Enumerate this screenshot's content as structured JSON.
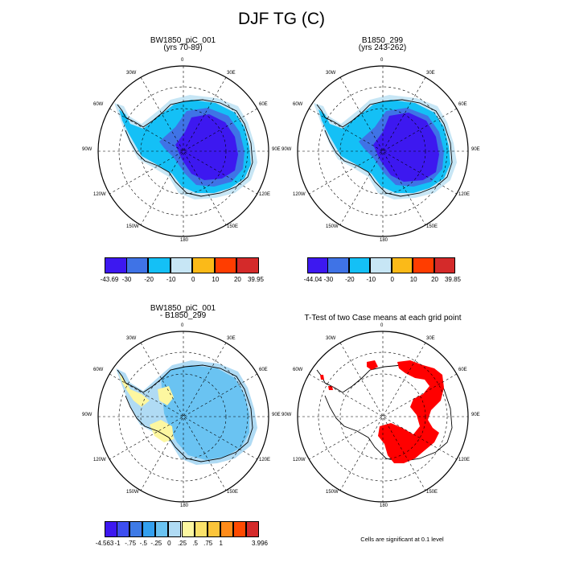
{
  "title": "DJF TG (C)",
  "panels": [
    {
      "id": "p1",
      "title_line1": "BW1850_piC_001",
      "title_line2": "(yrs 70-89)"
    },
    {
      "id": "p2",
      "title_line1": "B1850_299",
      "title_line2": "(yrs 243-262)"
    },
    {
      "id": "p3",
      "title_line1": "BW1850_piC_001",
      "title_line2": "- B1850_299"
    },
    {
      "id": "p4",
      "title_line1": "T-Test of two Case means at each grid point",
      "title_line2": ""
    }
  ],
  "lon_labels": {
    "l0": "0",
    "l30e": "30E",
    "l60e": "60E",
    "l90e": "90E",
    "l120e": "120E",
    "l150e": "150E",
    "l180": "180",
    "l150w": "150W",
    "l120w": "120W",
    "l90w": "90W",
    "l60w": "60W",
    "l30w": "30W"
  },
  "colorbars": [
    {
      "id": "cb1",
      "min_label": "-43.69",
      "max_label": "39.95",
      "ticks": [
        "-30",
        "-20",
        "-10",
        "0",
        "10",
        "20"
      ],
      "colors": [
        "#3d18f0",
        "#3f73e6",
        "#14c0f6",
        "#c7e6f5",
        "#fbba18",
        "#ff3d00",
        "#d42a2a"
      ]
    },
    {
      "id": "cb2",
      "min_label": "-44.04",
      "max_label": "39.85",
      "ticks": [
        "-30",
        "-20",
        "-10",
        "0",
        "10",
        "20"
      ],
      "colors": [
        "#3d18f0",
        "#3f73e6",
        "#14c0f6",
        "#c7e6f5",
        "#fbba18",
        "#ff3d00",
        "#d42a2a"
      ]
    },
    {
      "id": "cb3",
      "min_label": "-4.563",
      "max_label": "3.996",
      "ticks": [
        "-1",
        "-.75",
        "-.5",
        "-.25",
        "0",
        ".25",
        ".5",
        ".75",
        "1"
      ],
      "colors": [
        "#3d18f0",
        "#3d4ef0",
        "#3e7ae6",
        "#33a0ef",
        "#6ac3f2",
        "#b0dbf4",
        "#fdf7a0",
        "#fbe26a",
        "#fbc43a",
        "#ff8c1a",
        "#ff4a00",
        "#d42a2a"
      ]
    }
  ],
  "footnote": "Cells are significant at 0.1 level",
  "colors": {
    "deep": "#3d18f0",
    "mid": "#3f73e6",
    "cyan": "#14c0f6",
    "light": "#c7e6f5",
    "diff_blue": "#6ac3f2",
    "diff_light": "#b0dbf4",
    "diff_yellow": "#fdf7a0",
    "significant": "#ff0000"
  }
}
